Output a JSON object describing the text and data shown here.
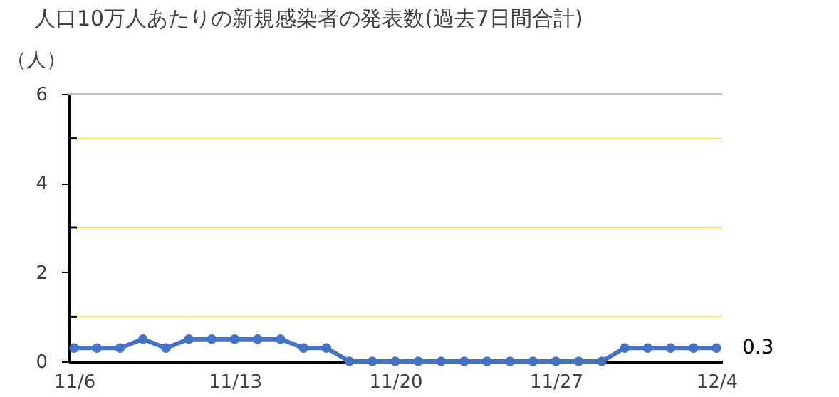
{
  "chart_data": {
    "type": "line",
    "title": "人口10万人あたりの新規感染者の発表数(過去7日間合計)",
    "ylabel": "（人）",
    "categories": [
      "11/6",
      null,
      null,
      null,
      null,
      null,
      null,
      "11/13",
      null,
      null,
      null,
      null,
      null,
      null,
      "11/20",
      null,
      null,
      null,
      null,
      null,
      null,
      "11/27",
      null,
      null,
      null,
      null,
      null,
      null,
      "12/4"
    ],
    "series": [
      {
        "color": "#4472c4",
        "values": [
          0.3,
          0.3,
          0.3,
          0.5,
          0.3,
          0.5,
          0.5,
          0.5,
          0.5,
          0.5,
          0.3,
          0.3,
          0,
          0,
          0,
          0,
          0,
          0,
          0,
          0,
          0,
          0,
          0,
          0,
          0.3,
          0.3,
          0.3,
          0.3,
          0.3
        ],
        "value_labels": [
          null,
          null,
          null,
          null,
          null,
          null,
          null,
          null,
          null,
          null,
          null,
          null,
          null,
          null,
          null,
          null,
          null,
          null,
          null,
          null,
          null,
          null,
          null,
          null,
          null,
          null,
          null,
          null,
          "0.3"
        ]
      }
    ],
    "ylim": [
      0,
      6
    ],
    "yticks": [
      0,
      {
        "value": 1,
        "label": null
      },
      2,
      {
        "value": 3,
        "label": null
      },
      4,
      {
        "value": 5,
        "label": null
      },
      6
    ],
    "ref_lines": [
      {
        "axis": "y",
        "value": 1,
        "color": "#ffd966"
      },
      {
        "axis": "y",
        "value": 3,
        "color": "#ffd966"
      },
      {
        "axis": "y",
        "value": 5,
        "color": "#ffd966"
      },
      {
        "axis": "y",
        "value": 6,
        "color": "#bfbfbf"
      }
    ],
    "grid": false,
    "marker": "circle",
    "line_style": "solid"
  }
}
